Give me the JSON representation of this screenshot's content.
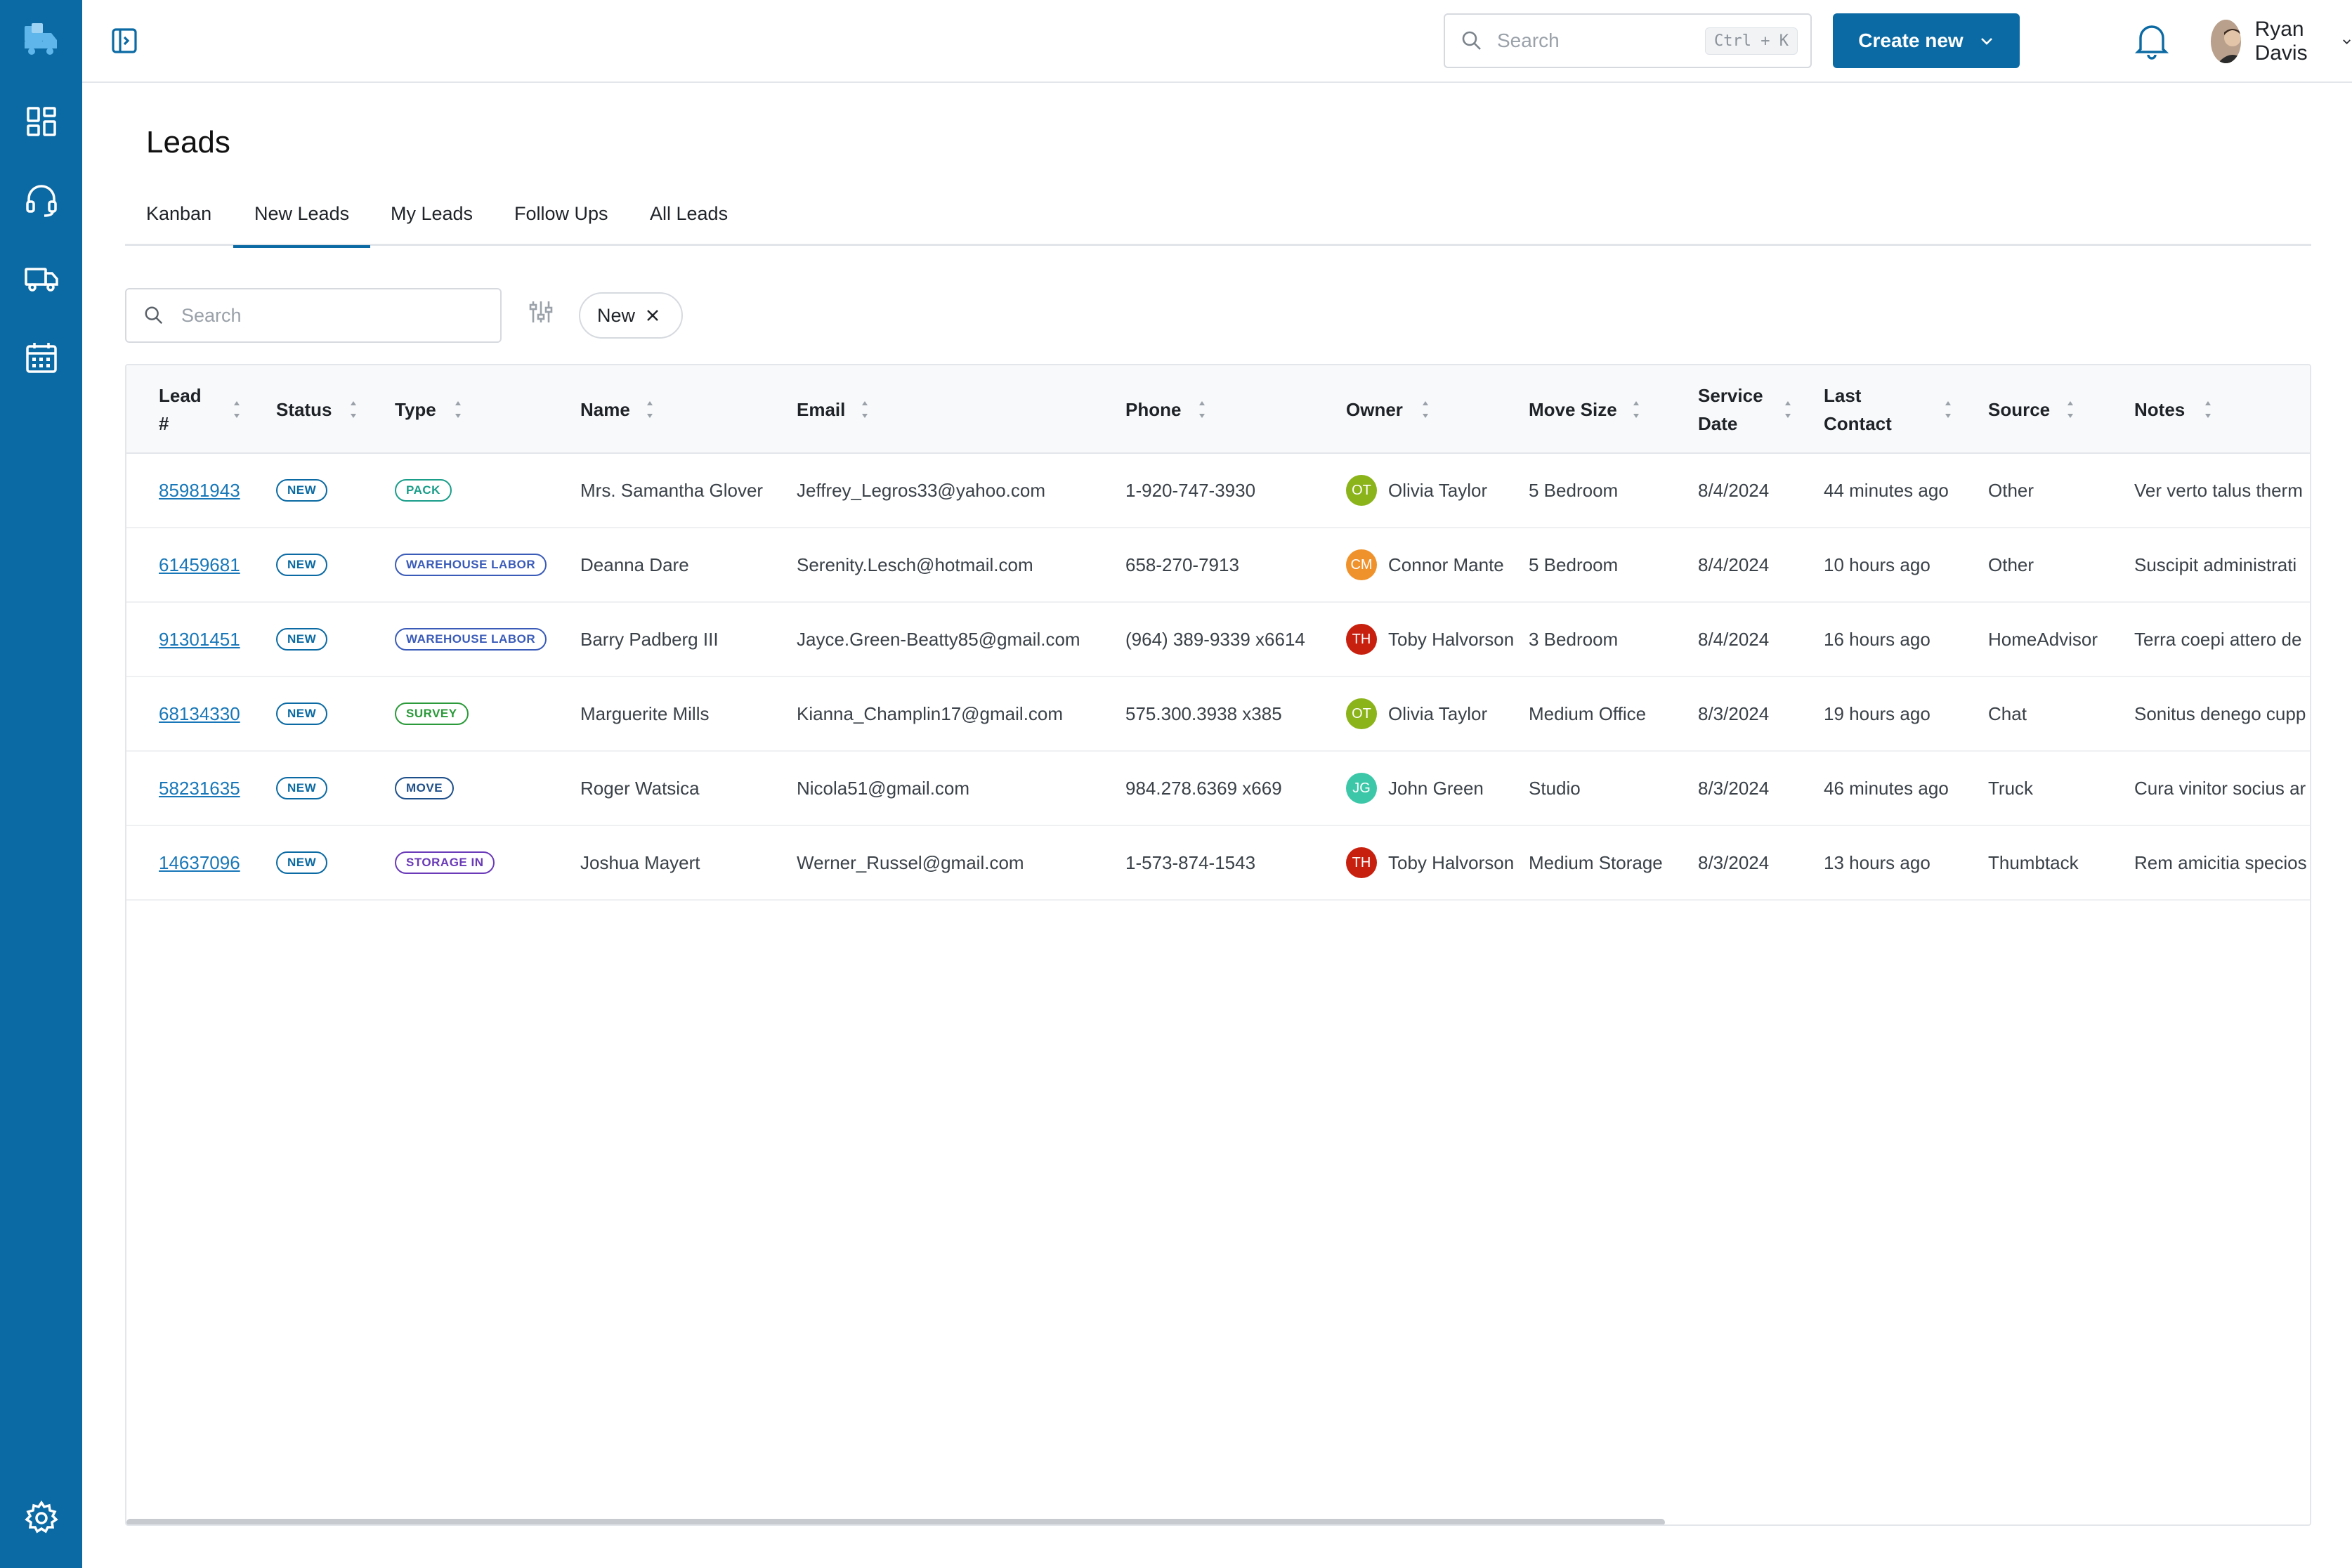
{
  "header": {
    "search_placeholder": "Search",
    "search_shortcut": "Ctrl + K",
    "create_label": "Create new",
    "user_name": "Ryan Davis"
  },
  "page": {
    "title": "Leads"
  },
  "tabs": [
    {
      "label": "Kanban",
      "active": false
    },
    {
      "label": "New Leads",
      "active": true
    },
    {
      "label": "My Leads",
      "active": false
    },
    {
      "label": "Follow Ups",
      "active": false
    },
    {
      "label": "All Leads",
      "active": false
    }
  ],
  "filters": {
    "search_placeholder": "Search",
    "chip_label": "New"
  },
  "table": {
    "columns": [
      "Lead #",
      "Status",
      "Type",
      "Name",
      "Email",
      "Phone",
      "Owner",
      "Move Size",
      "Service Date",
      "Last Contact",
      "Source",
      "Notes"
    ],
    "header_lines": {
      "lead": [
        "Lead",
        "#"
      ],
      "service_date": [
        "Service",
        "Date"
      ],
      "last_contact": [
        "Last",
        "Contact"
      ]
    },
    "rows": [
      {
        "lead": "85981943",
        "status": "NEW",
        "type": "PACK",
        "type_color": "#1a9e8a",
        "name": "Mrs. Samantha Glover",
        "email": "Jeffrey_Legros33@yahoo.com",
        "phone": "1-920-747-3930",
        "owner_initials": "OT",
        "owner_color": "#8bb31a",
        "owner": "Olivia Taylor",
        "move_size": "5 Bedroom",
        "service_date": "8/4/2024",
        "last_contact": "44 minutes ago",
        "source": "Other",
        "notes": "Ver verto talus therm"
      },
      {
        "lead": "61459681",
        "status": "NEW",
        "type": "WAREHOUSE LABOR",
        "type_color": "#3a5bb8",
        "name": "Deanna Dare",
        "email": "Serenity.Lesch@hotmail.com",
        "phone": "658-270-7913",
        "owner_initials": "CM",
        "owner_color": "#f0922b",
        "owner": "Connor Mante",
        "move_size": "5 Bedroom",
        "service_date": "8/4/2024",
        "last_contact": "10 hours ago",
        "source": "Other",
        "notes": "Suscipit administrati"
      },
      {
        "lead": "91301451",
        "status": "NEW",
        "type": "WAREHOUSE LABOR",
        "type_color": "#3a5bb8",
        "name": "Barry Padberg III",
        "email": "Jayce.Green-Beatty85@gmail.com",
        "phone": "(964) 389-9339 x6614",
        "owner_initials": "TH",
        "owner_color": "#c8200e",
        "owner": "Toby Halvorson",
        "move_size": "3 Bedroom",
        "service_date": "8/4/2024",
        "last_contact": "16 hours ago",
        "source": "HomeAdvisor",
        "notes": "Terra coepi attero de"
      },
      {
        "lead": "68134330",
        "status": "NEW",
        "type": "SURVEY",
        "type_color": "#2b9a3a",
        "name": "Marguerite Mills",
        "email": "Kianna_Champlin17@gmail.com",
        "phone": "575.300.3938 x385",
        "owner_initials": "OT",
        "owner_color": "#8bb31a",
        "owner": "Olivia Taylor",
        "move_size": "Medium Office",
        "service_date": "8/3/2024",
        "last_contact": "19 hours ago",
        "source": "Chat",
        "notes": "Sonitus denego cupp"
      },
      {
        "lead": "58231635",
        "status": "NEW",
        "type": "MOVE",
        "type_color": "#1e4f8a",
        "name": "Roger Watsica",
        "email": "Nicola51@gmail.com",
        "phone": "984.278.6369 x669",
        "owner_initials": "JG",
        "owner_color": "#3cc8a8",
        "owner": "John Green",
        "move_size": "Studio",
        "service_date": "8/3/2024",
        "last_contact": "46 minutes ago",
        "source": "Truck",
        "notes": "Cura vinitor socius ar"
      },
      {
        "lead": "14637096",
        "status": "NEW",
        "type": "STORAGE IN",
        "type_color": "#6a3ab8",
        "name": "Joshua Mayert",
        "email": "Werner_Russel@gmail.com",
        "phone": "1-573-874-1543",
        "owner_initials": "TH",
        "owner_color": "#c8200e",
        "owner": "Toby Halvorson",
        "move_size": "Medium Storage",
        "service_date": "8/3/2024",
        "last_contact": "13 hours ago",
        "source": "Thumbtack",
        "notes": "Rem amicitia specios"
      }
    ]
  },
  "colors": {
    "brand": "#0b6aa3",
    "link": "#1877b8"
  },
  "icons": {
    "sidebar": [
      "moving-truck-logo-icon",
      "dashboard-icon",
      "headset-icon",
      "truck-icon",
      "calendar-icon",
      "gear-icon"
    ]
  }
}
